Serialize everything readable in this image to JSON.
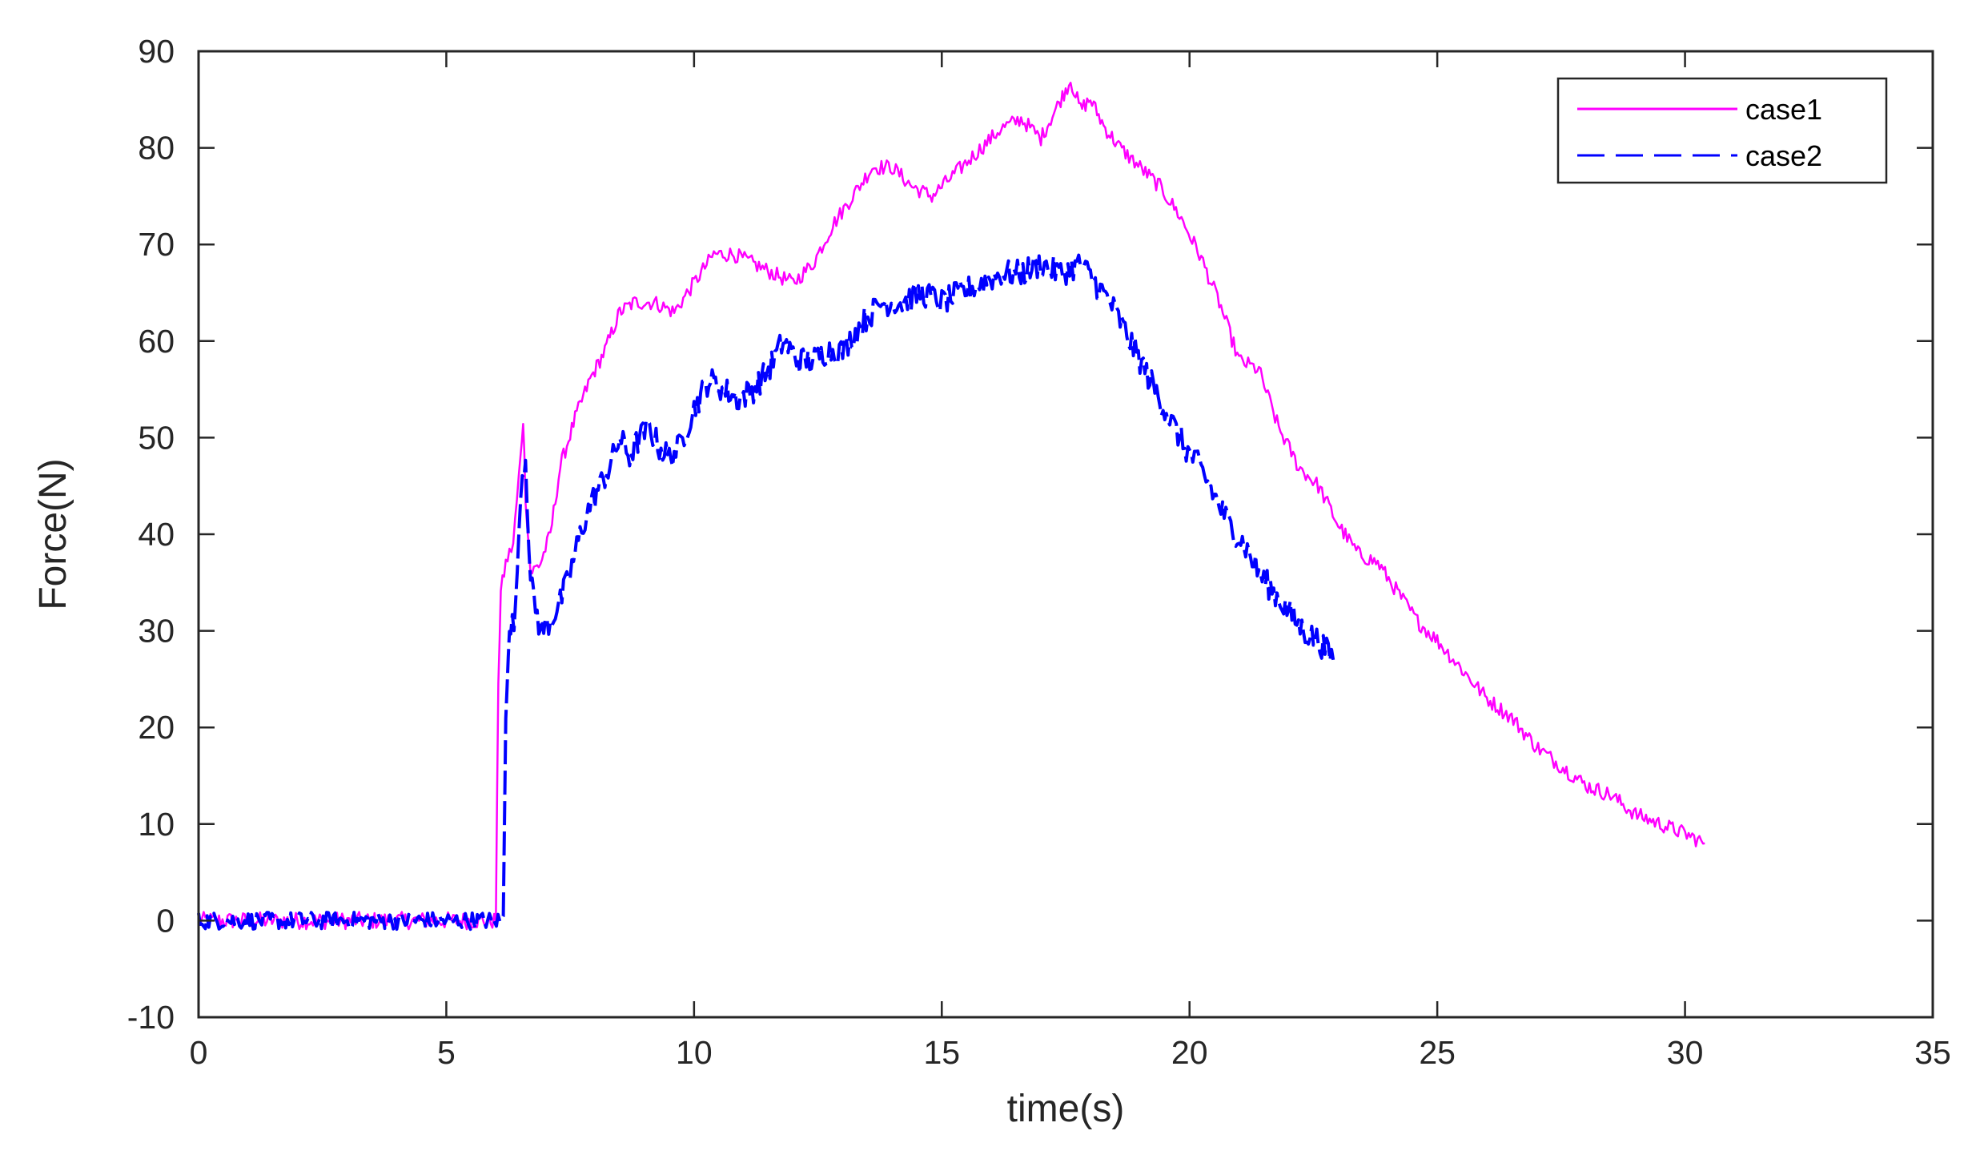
{
  "chart_data": {
    "type": "line",
    "title": "",
    "xlabel": "time(s)",
    "ylabel": "Force(N)",
    "xlim": [
      0,
      35
    ],
    "ylim": [
      -10,
      90
    ],
    "xticks": [
      0,
      5,
      10,
      15,
      20,
      25,
      30,
      35
    ],
    "yticks": [
      -10,
      0,
      10,
      20,
      30,
      40,
      50,
      60,
      70,
      80,
      90
    ],
    "xtick_labels": [
      "0",
      "5",
      "10",
      "15",
      "20",
      "25",
      "30",
      "35"
    ],
    "ytick_labels": [
      "-10",
      "0",
      "10",
      "20",
      "30",
      "40",
      "50",
      "60",
      "70",
      "80",
      "90"
    ],
    "grid": false,
    "legend_position": "top-right",
    "series": [
      {
        "name": "case1",
        "color": "#ff00ff",
        "style": "solid",
        "x": [
          0,
          1,
          2,
          3,
          4,
          5,
          6.0,
          6.05,
          6.1,
          6.2,
          6.35,
          6.5,
          6.55,
          6.6,
          6.7,
          6.9,
          7.1,
          7.3,
          7.6,
          7.9,
          8.2,
          8.5,
          8.8,
          9.2,
          9.6,
          10.0,
          10.4,
          10.8,
          11.2,
          11.6,
          12.0,
          12.4,
          12.8,
          13.2,
          13.6,
          14.0,
          14.4,
          14.8,
          15.0,
          15.4,
          15.8,
          16.2,
          16.6,
          17.0,
          17.3,
          17.6,
          17.8,
          18.0,
          18.3,
          18.6,
          19.0,
          19.4,
          19.8,
          20.2,
          20.6,
          21.0,
          21.4,
          21.8,
          22.2,
          22.6,
          23.0,
          23.4,
          23.8,
          24.2,
          24.6,
          25.0,
          25.5,
          26.0,
          26.5,
          27.0,
          27.5,
          28.0,
          28.5,
          29.0,
          29.5,
          30.0,
          30.4
        ],
        "y": [
          0,
          0,
          0,
          0,
          0,
          0,
          0,
          25,
          34,
          37,
          39,
          48,
          52,
          44,
          36,
          37,
          40,
          47,
          52,
          56,
          59,
          63,
          64,
          64,
          63,
          66,
          69,
          69,
          68,
          67,
          66,
          68,
          72,
          75,
          78,
          78,
          76,
          75,
          76,
          78,
          80,
          82,
          83,
          81,
          84,
          87,
          84,
          85,
          82,
          80,
          78,
          76,
          73,
          69,
          64,
          58,
          57,
          51,
          47,
          45,
          41,
          38,
          37,
          34,
          31,
          29,
          26,
          23,
          21,
          18,
          16,
          14,
          13,
          11,
          10,
          9,
          8
        ]
      },
      {
        "name": "case2",
        "color": "#0000ff",
        "style": "dashed",
        "x": [
          0,
          1,
          2,
          3,
          4,
          5,
          6.15,
          6.2,
          6.25,
          6.3,
          6.4,
          6.5,
          6.6,
          6.7,
          6.9,
          7.1,
          7.3,
          7.5,
          7.7,
          7.9,
          8.1,
          8.3,
          8.5,
          8.7,
          8.9,
          9.1,
          9.3,
          9.5,
          9.7,
          10.0,
          10.3,
          10.6,
          10.9,
          11.2,
          11.5,
          11.8,
          12.1,
          12.4,
          12.7,
          13.0,
          13.4,
          13.8,
          14.2,
          14.6,
          15.0,
          15.4,
          15.8,
          16.2,
          16.6,
          17.0,
          17.4,
          17.8,
          18.1,
          18.4,
          18.7,
          19.0,
          19.3,
          19.6,
          19.9,
          20.2,
          20.5,
          20.8,
          21.1,
          21.4,
          21.7,
          22.0,
          22.3,
          22.6,
          22.9
        ],
        "y": [
          0,
          0,
          0,
          0,
          0,
          0,
          0,
          22,
          28,
          30,
          32,
          45,
          48,
          35,
          30,
          31,
          33,
          36,
          40,
          43,
          45,
          47,
          50,
          48,
          50,
          51,
          49,
          48,
          49,
          53,
          56,
          55,
          54,
          55,
          57,
          60,
          58,
          58,
          59,
          59,
          62,
          64,
          64,
          65,
          64,
          65,
          66,
          67,
          67,
          68,
          67,
          68,
          66,
          64,
          61,
          58,
          55,
          52,
          49,
          47,
          44,
          41,
          39,
          36,
          34,
          32,
          30,
          29,
          27
        ]
      }
    ]
  }
}
